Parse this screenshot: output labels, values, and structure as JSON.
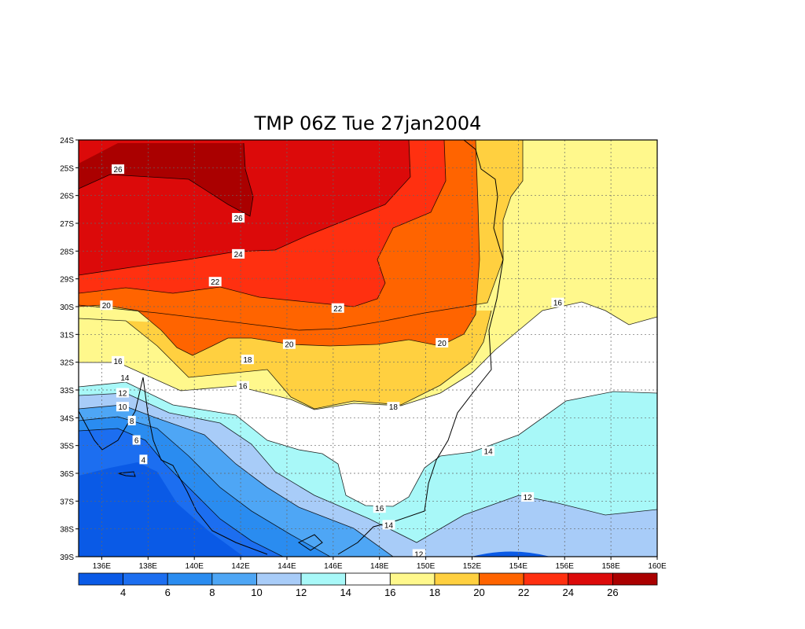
{
  "chart_data": {
    "type": "heatmap",
    "title": "TMP 06Z Tue 27jan2004",
    "variable": "TMP",
    "lon_range": [
      135,
      160
    ],
    "lat_range": [
      -39,
      -24
    ],
    "x_ticks": [
      "136E",
      "138E",
      "140E",
      "142E",
      "144E",
      "146E",
      "148E",
      "150E",
      "152E",
      "154E",
      "156E",
      "158E",
      "160E"
    ],
    "y_ticks": [
      "24S",
      "25S",
      "26S",
      "27S",
      "28S",
      "29S",
      "30S",
      "31S",
      "32S",
      "33S",
      "34S",
      "35S",
      "36S",
      "37S",
      "38S",
      "39S"
    ],
    "grid": true,
    "contour_levels": [
      4,
      6,
      8,
      10,
      12,
      14,
      16,
      18,
      20,
      22,
      24,
      26
    ],
    "colorbar": {
      "labels": [
        "4",
        "6",
        "8",
        "10",
        "12",
        "14",
        "16",
        "18",
        "20",
        "22",
        "24",
        "26"
      ],
      "colors": [
        "#0a5ae6",
        "#1c6ef0",
        "#2a8cf0",
        "#4ea6f5",
        "#a8ccf8",
        "#a8f8f8",
        "#ffffff",
        "#fff88c",
        "#ffd040",
        "#ff6400",
        "#ff3010",
        "#dc0a0a",
        "#aa0000"
      ]
    },
    "contour_labels": [
      {
        "text": "26",
        "lon": 136.7,
        "lat": -25.05
      },
      {
        "text": "26",
        "lon": 141.9,
        "lat": -26.8
      },
      {
        "text": "24",
        "lon": 141.9,
        "lat": -28.1
      },
      {
        "text": "22",
        "lon": 140.9,
        "lat": -29.1
      },
      {
        "text": "22",
        "lon": 146.2,
        "lat": -30.05
      },
      {
        "text": "20",
        "lon": 136.2,
        "lat": -29.95
      },
      {
        "text": "20",
        "lon": 144.1,
        "lat": -31.35
      },
      {
        "text": "20",
        "lon": 150.7,
        "lat": -31.3
      },
      {
        "text": "18",
        "lon": 142.3,
        "lat": -31.9
      },
      {
        "text": "18",
        "lon": 148.6,
        "lat": -33.6
      },
      {
        "text": "16",
        "lon": 136.7,
        "lat": -31.95
      },
      {
        "text": "16",
        "lon": 142.1,
        "lat": -32.85
      },
      {
        "text": "16",
        "lon": 155.7,
        "lat": -29.85
      },
      {
        "text": "16",
        "lon": 148.0,
        "lat": -37.25
      },
      {
        "text": "14",
        "lon": 137.0,
        "lat": -32.55
      },
      {
        "text": "14",
        "lon": 152.7,
        "lat": -35.2
      },
      {
        "text": "14",
        "lon": 148.4,
        "lat": -37.85
      },
      {
        "text": "12",
        "lon": 136.9,
        "lat": -33.1
      },
      {
        "text": "12",
        "lon": 154.4,
        "lat": -36.85
      },
      {
        "text": "12",
        "lon": 149.7,
        "lat": -38.9
      },
      {
        "text": "10",
        "lon": 136.9,
        "lat": -33.6
      },
      {
        "text": "8",
        "lon": 137.3,
        "lat": -34.1
      },
      {
        "text": "6",
        "lon": 137.5,
        "lat": -34.8
      },
      {
        "text": "4",
        "lon": 137.8,
        "lat": -35.5
      }
    ]
  }
}
